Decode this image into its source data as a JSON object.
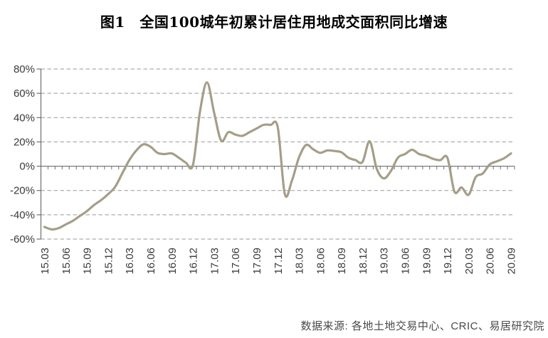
{
  "title": "图1　全国100城年初累计居住用地成交面积同比增速",
  "source": "数据来源: 各地土地交易中心、CRIC、易居研究院",
  "chart_data": {
    "type": "line",
    "title": "图1 全国100城年初累计居住用地成交面积同比增速",
    "series_name": "全国100城年初累计居住用地成交面积同比增速",
    "x": [
      "15.03",
      "15.04",
      "15.05",
      "15.06",
      "15.07",
      "15.08",
      "15.09",
      "15.10",
      "15.11",
      "15.12",
      "16.01",
      "16.02",
      "16.03",
      "16.04",
      "16.05",
      "16.06",
      "16.07",
      "16.08",
      "16.09",
      "16.10",
      "16.11",
      "16.12",
      "17.01",
      "17.02",
      "17.03",
      "17.04",
      "17.05",
      "17.06",
      "17.07",
      "17.08",
      "17.09",
      "17.10",
      "17.11",
      "17.12",
      "18.01",
      "18.02",
      "18.03",
      "18.04",
      "18.05",
      "18.06",
      "18.07",
      "18.08",
      "18.09",
      "18.10",
      "18.11",
      "18.12",
      "19.01",
      "19.02",
      "19.03",
      "19.04",
      "19.05",
      "19.06",
      "19.07",
      "19.08",
      "19.09",
      "19.10",
      "19.11",
      "19.12",
      "20.01",
      "20.02",
      "20.03",
      "20.04",
      "20.05",
      "20.06",
      "20.07",
      "20.08",
      "20.09"
    ],
    "values": [
      -50,
      -52,
      -51,
      -48,
      -45,
      -41,
      -37,
      -32,
      -28,
      -23,
      -17,
      -6,
      5,
      13,
      18,
      16,
      11,
      10,
      10.5,
      7,
      3,
      1,
      45,
      69,
      44,
      21,
      28,
      26,
      25,
      28,
      31,
      34,
      34,
      32,
      -23,
      -12,
      7,
      17.5,
      14,
      11,
      13,
      12.5,
      11.5,
      7,
      5,
      3.5,
      20.5,
      -2,
      -10,
      -4,
      7,
      10,
      13.5,
      10,
      8.5,
      6,
      5,
      7,
      -21,
      -17.5,
      -23.5,
      -9,
      -6,
      1.5,
      4,
      6.5,
      10.5
    ],
    "x_tick_labels": [
      "15.03",
      "15.06",
      "15.09",
      "15.12",
      "16.03",
      "16.06",
      "16.09",
      "16.12",
      "17.03",
      "17.06",
      "17.09",
      "17.12",
      "18.03",
      "18.06",
      "18.09",
      "18.12",
      "19.03",
      "19.06",
      "19.09",
      "19.12",
      "20.03",
      "20.06",
      "20.09"
    ],
    "x_tick_label_every": 3,
    "ylim": [
      -60,
      80
    ],
    "yticks": [
      80,
      60,
      40,
      20,
      0,
      -20,
      -40,
      -60
    ],
    "ytick_labels": [
      "80%",
      "60%",
      "40%",
      "20%",
      "0%",
      "-20%",
      "-40%",
      "-60%"
    ],
    "grid": "dashed-horizontal",
    "legend": "none",
    "smooth": true,
    "colors": {
      "line": "#A59E88",
      "grid": "#999999",
      "axis": "#6E6E6E",
      "tick_text": "#3a3a3a",
      "title_text": "#000000",
      "source_text": "#4a4a4a"
    }
  }
}
